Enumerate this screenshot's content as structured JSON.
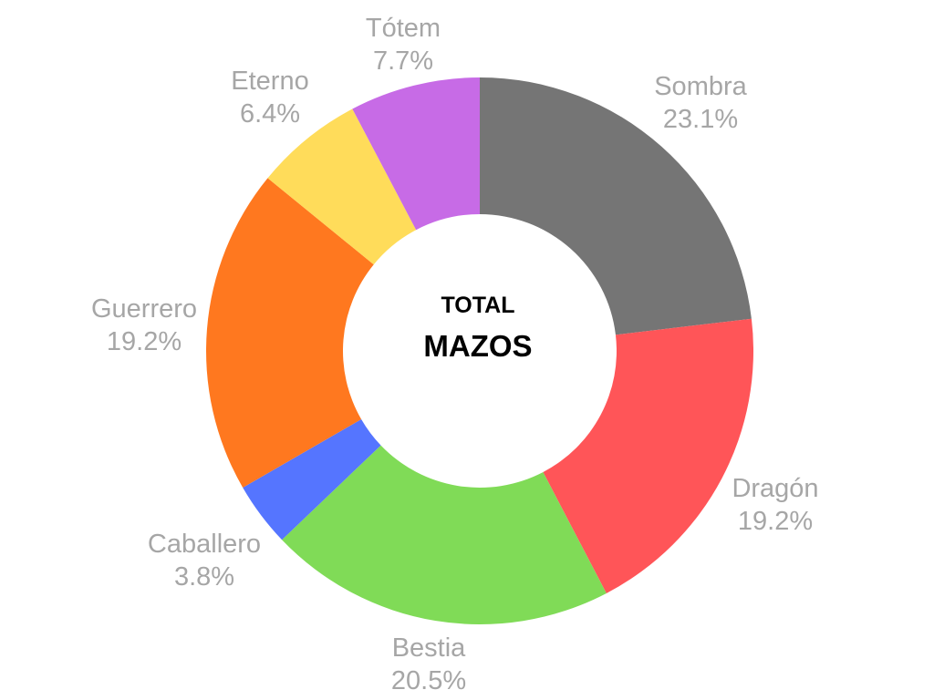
{
  "chart_data": {
    "type": "donut",
    "center_title": [
      "TOTAL",
      "MAZOS"
    ],
    "label_color": "#a6a6a6",
    "slices": [
      {
        "label": "Sombra",
        "value": 23.1,
        "display": "23.1%",
        "color": "#757575"
      },
      {
        "label": "Dragón",
        "value": 19.2,
        "display": "19.2%",
        "color": "#ff5558"
      },
      {
        "label": "Bestia",
        "value": 20.5,
        "display": "20.5%",
        "color": "#80db57"
      },
      {
        "label": "Caballero",
        "value": 3.8,
        "display": "3.8%",
        "color": "#5575ff"
      },
      {
        "label": "Guerrero",
        "value": 19.2,
        "display": "19.2%",
        "color": "#ff781f"
      },
      {
        "label": "Eterno",
        "value": 6.4,
        "display": "6.4%",
        "color": "#ffdc5a"
      },
      {
        "label": "Tótem",
        "value": 7.7,
        "display": "7.7%",
        "color": "#c76be6"
      }
    ]
  }
}
